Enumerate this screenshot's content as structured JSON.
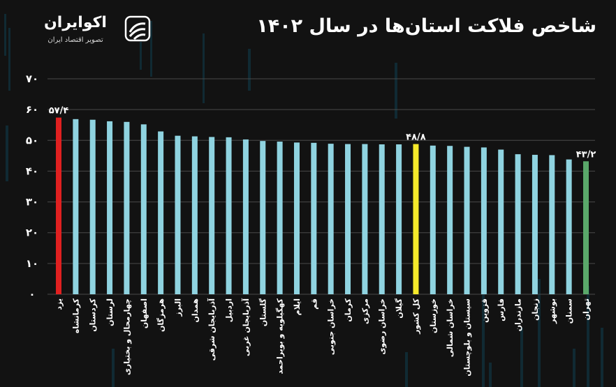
{
  "header": {
    "title": "شاخص فلاکت استان‌ها در سال ۱۴۰۲",
    "logo_name": "اکوایران",
    "logo_tagline": "تصویر اقتصاد ایران"
  },
  "colors": {
    "background": "#121212",
    "bar_default": "#8fd3e0",
    "bar_highest": "#e02020",
    "bar_country": "#f5e92a",
    "bar_lowest": "#5aa86a",
    "grid": "#4a4a4a",
    "text": "#ffffff"
  },
  "chart_data": {
    "type": "bar",
    "title": "شاخص فلاکت استان‌ها در سال ۱۴۰۲",
    "categories": [
      "یزد",
      "کرمانشاه",
      "کردستان",
      "لرستان",
      "چهارمحال و بختیاری",
      "اصفهان",
      "هرمزگان",
      "البرز",
      "همدان",
      "آذربایجان شرقی",
      "اردبیل",
      "آذربایجان غربی",
      "گلستان",
      "کهگیلویه و بویراحمد",
      "ایلام",
      "قم",
      "خراسان جنوبی",
      "کرمان",
      "مرکزی",
      "خراسان رضوی",
      "گیلان",
      "کل کشور",
      "خوزستان",
      "خراسان شمالی",
      "سیستان و بلوچستان",
      "قزوین",
      "فارس",
      "مازندران",
      "زنجان",
      "بوشهر",
      "سمنان",
      "تهران"
    ],
    "values": [
      57.4,
      56.9,
      56.7,
      56.2,
      56.0,
      55.2,
      52.9,
      51.5,
      51.3,
      51.1,
      51.0,
      50.3,
      49.8,
      49.6,
      49.3,
      49.2,
      48.9,
      48.8,
      48.8,
      48.7,
      48.7,
      48.8,
      48.3,
      48.2,
      47.9,
      47.7,
      47.0,
      45.5,
      45.3,
      45.2,
      43.8,
      43.2
    ],
    "highlight": [
      "highest",
      "default",
      "default",
      "default",
      "default",
      "default",
      "default",
      "default",
      "default",
      "default",
      "default",
      "default",
      "default",
      "default",
      "default",
      "default",
      "default",
      "default",
      "default",
      "default",
      "default",
      "country",
      "default",
      "default",
      "default",
      "default",
      "default",
      "default",
      "default",
      "default",
      "default",
      "lowest"
    ],
    "data_labels": [
      {
        "index": 0,
        "text": "۵۷/۴"
      },
      {
        "index": 21,
        "text": "۴۸/۸"
      },
      {
        "index": 31,
        "text": "۴۳/۲"
      }
    ],
    "y_ticks": [
      "۰",
      "۱۰",
      "۲۰",
      "۳۰",
      "۴۰",
      "۵۰",
      "۶۰",
      "۷۰"
    ],
    "ylim": [
      0,
      70
    ],
    "grid": true
  }
}
